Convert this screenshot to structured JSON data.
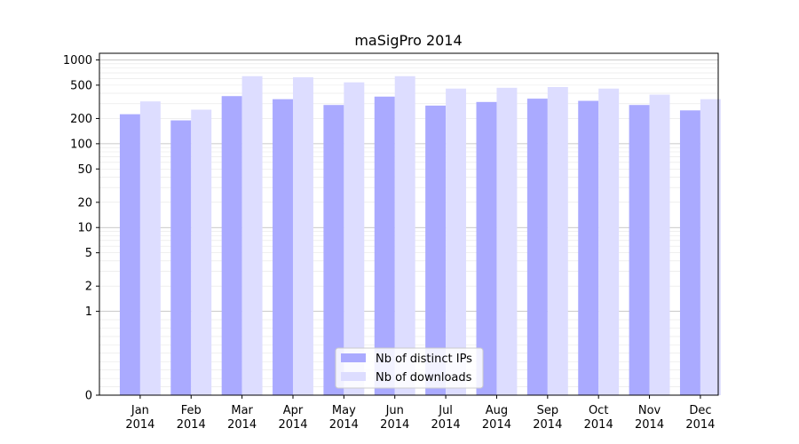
{
  "chart_data": {
    "type": "bar",
    "title": "maSigPro 2014",
    "xlabel": "",
    "ylabel": "",
    "y_scale": "symlog",
    "ylim": [
      0,
      1200
    ],
    "y_ticks": [
      0,
      1,
      2,
      5,
      10,
      20,
      50,
      100,
      200,
      500,
      1000
    ],
    "y_tick_labels": [
      "0",
      "1",
      "2",
      "5",
      "10",
      "20",
      "50",
      "100",
      "200",
      "500",
      "1000"
    ],
    "grid": true,
    "legend_position": "bottom-center",
    "categories": [
      [
        "Jan",
        "2014"
      ],
      [
        "Feb",
        "2014"
      ],
      [
        "Mar",
        "2014"
      ],
      [
        "Apr",
        "2014"
      ],
      [
        "May",
        "2014"
      ],
      [
        "Jun",
        "2014"
      ],
      [
        "Jul",
        "2014"
      ],
      [
        "Aug",
        "2014"
      ],
      [
        "Sep",
        "2014"
      ],
      [
        "Oct",
        "2014"
      ],
      [
        "Nov",
        "2014"
      ],
      [
        "Dec",
        "2014"
      ]
    ],
    "series": [
      {
        "name": "Nb of distinct IPs",
        "color": "#aaaaff",
        "values": [
          225,
          190,
          370,
          340,
          290,
          365,
          285,
          315,
          345,
          325,
          290,
          250
        ]
      },
      {
        "name": "Nb of downloads",
        "color": "#ddddff",
        "values": [
          320,
          255,
          640,
          620,
          540,
          640,
          455,
          465,
          475,
          455,
          385,
          340
        ]
      }
    ]
  }
}
